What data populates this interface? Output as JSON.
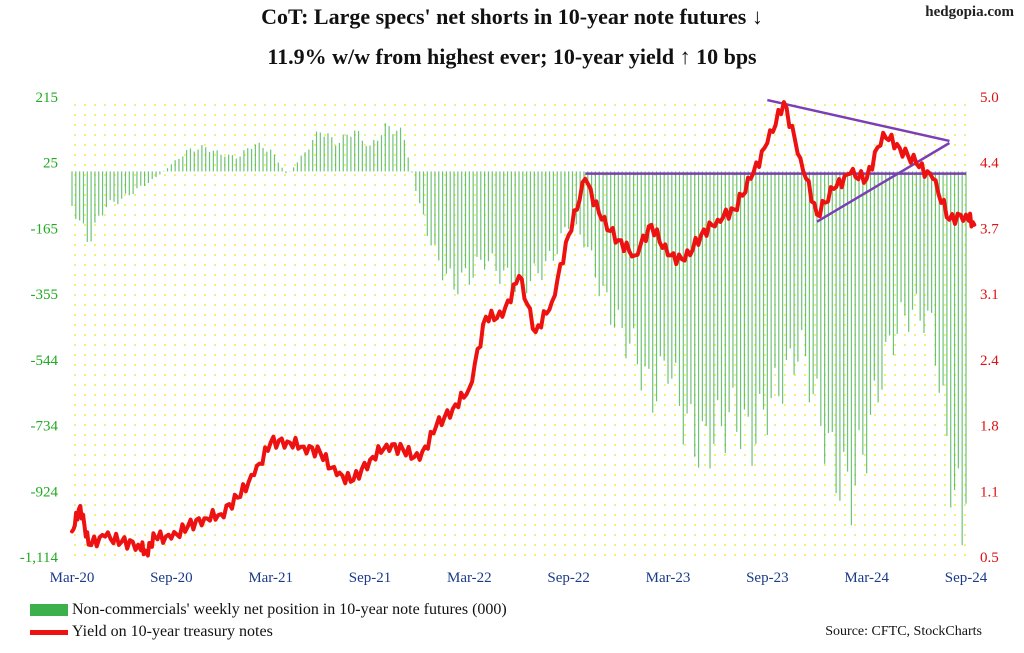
{
  "brand": "hedgopia.com",
  "title_line1": "CoT: Large specs' net shorts in 10-year note futures ↓",
  "title_line2": "11.9% w/w from highest ever; 10-year yield ↑ 10 bps",
  "legend": {
    "bars": "Non-commercials' weekly net position in 10-year note futures (000)",
    "line": "Yield on 10-year treasury notes"
  },
  "source": "Source: CFTC, StockCharts",
  "colors": {
    "bars": "#3cb04a",
    "line": "#ee1111",
    "trendlines": "#7a3fb5",
    "left_axis_text": "#22aa22",
    "right_axis_text": "#dd1111",
    "plot_dots": "#f0ec70"
  },
  "chart_data": {
    "type": "bar",
    "x_range": [
      "2020-03",
      "2024-09"
    ],
    "x_tick_labels": [
      "Mar-20",
      "Sep-20",
      "Mar-21",
      "Sep-21",
      "Mar-22",
      "Sep-22",
      "Mar-23",
      "Sep-23",
      "Mar-24",
      "Sep-24"
    ],
    "y_left": {
      "ticks": [
        "215",
        "25",
        "-165",
        "-355",
        "-544",
        "-734",
        "-924",
        "-1,114"
      ],
      "ylim": [
        -1114,
        215
      ]
    },
    "y_right": {
      "ticks": [
        "5.0",
        "4.4",
        "3.7",
        "3.1",
        "2.4",
        "1.8",
        "1.1",
        "0.5"
      ],
      "ylim": [
        0.5,
        5.0
      ]
    },
    "grid": "dotted",
    "series": [
      {
        "name": "Non-commercials' weekly net position in 10-year note futures (000)",
        "kind": "bar",
        "axis": "left",
        "anchors": [
          [
            "2020-03",
            -100
          ],
          [
            "2020-04",
            -200
          ],
          [
            "2020-05",
            -100
          ],
          [
            "2020-06",
            -80
          ],
          [
            "2020-08",
            -20
          ],
          [
            "2020-09",
            20
          ],
          [
            "2020-10",
            60
          ],
          [
            "2020-11",
            70
          ],
          [
            "2020-12",
            50
          ],
          [
            "2021-01",
            40
          ],
          [
            "2021-02",
            80
          ],
          [
            "2021-03",
            60
          ],
          [
            "2021-04",
            -10
          ],
          [
            "2021-05",
            50
          ],
          [
            "2021-06",
            120
          ],
          [
            "2021-07",
            80
          ],
          [
            "2021-08",
            120
          ],
          [
            "2021-09",
            70
          ],
          [
            "2021-10",
            130
          ],
          [
            "2021-11",
            110
          ],
          [
            "2021-12",
            -100
          ],
          [
            "2022-01",
            -250
          ],
          [
            "2022-02",
            -330
          ],
          [
            "2022-03",
            -300
          ],
          [
            "2022-04",
            -250
          ],
          [
            "2022-05",
            -300
          ],
          [
            "2022-06",
            -330
          ],
          [
            "2022-07",
            -300
          ],
          [
            "2022-08",
            -250
          ],
          [
            "2022-09",
            -150
          ],
          [
            "2022-10",
            -200
          ],
          [
            "2022-11",
            -350
          ],
          [
            "2022-12",
            -450
          ],
          [
            "2023-01",
            -520
          ],
          [
            "2023-02",
            -650
          ],
          [
            "2023-03",
            -550
          ],
          [
            "2023-04",
            -720
          ],
          [
            "2023-05",
            -800
          ],
          [
            "2023-06",
            -750
          ],
          [
            "2023-07",
            -700
          ],
          [
            "2023-08",
            -780
          ],
          [
            "2023-09",
            -680
          ],
          [
            "2023-10",
            -600
          ],
          [
            "2023-11",
            -500
          ],
          [
            "2023-12",
            -680
          ],
          [
            "2024-01",
            -850
          ],
          [
            "2024-02",
            -930
          ],
          [
            "2024-03",
            -780
          ],
          [
            "2024-04",
            -560
          ],
          [
            "2024-05",
            -430
          ],
          [
            "2024-06",
            -400
          ],
          [
            "2024-07",
            -450
          ],
          [
            "2024-08",
            -850
          ],
          [
            "2024-09",
            -1080
          ]
        ],
        "latest": -960
      },
      {
        "name": "Yield on 10-year treasury notes",
        "kind": "line",
        "axis": "right",
        "points": [
          [
            "2020-03",
            0.75
          ],
          [
            "2020-03",
            1.0
          ],
          [
            "2020-04",
            0.62
          ],
          [
            "2020-05",
            0.7
          ],
          [
            "2020-06",
            0.65
          ],
          [
            "2020-07",
            0.62
          ],
          [
            "2020-07",
            0.55
          ],
          [
            "2020-08",
            0.7
          ],
          [
            "2020-09",
            0.68
          ],
          [
            "2020-10",
            0.8
          ],
          [
            "2020-11",
            0.88
          ],
          [
            "2020-12",
            0.92
          ],
          [
            "2021-01",
            1.08
          ],
          [
            "2021-02",
            1.3
          ],
          [
            "2021-03",
            1.62
          ],
          [
            "2021-04",
            1.63
          ],
          [
            "2021-05",
            1.58
          ],
          [
            "2021-06",
            1.52
          ],
          [
            "2021-07",
            1.3
          ],
          [
            "2021-08",
            1.25
          ],
          [
            "2021-09",
            1.45
          ],
          [
            "2021-10",
            1.6
          ],
          [
            "2021-11",
            1.55
          ],
          [
            "2021-12",
            1.45
          ],
          [
            "2022-01",
            1.78
          ],
          [
            "2022-02",
            1.95
          ],
          [
            "2022-03",
            2.15
          ],
          [
            "2022-04",
            2.85
          ],
          [
            "2022-05",
            2.85
          ],
          [
            "2022-06",
            3.25
          ],
          [
            "2022-07",
            2.7
          ],
          [
            "2022-08",
            3.0
          ],
          [
            "2022-09",
            3.65
          ],
          [
            "2022-10",
            4.2
          ],
          [
            "2022-11",
            3.8
          ],
          [
            "2022-12",
            3.6
          ],
          [
            "2023-01",
            3.45
          ],
          [
            "2023-02",
            3.75
          ],
          [
            "2023-03",
            3.45
          ],
          [
            "2023-04",
            3.4
          ],
          [
            "2023-05",
            3.65
          ],
          [
            "2023-06",
            3.8
          ],
          [
            "2023-07",
            3.9
          ],
          [
            "2023-08",
            4.2
          ],
          [
            "2023-09",
            4.55
          ],
          [
            "2023-10",
            4.95
          ],
          [
            "2023-11",
            4.4
          ],
          [
            "2023-12",
            3.85
          ],
          [
            "2024-01",
            4.1
          ],
          [
            "2024-02",
            4.25
          ],
          [
            "2024-03",
            4.2
          ],
          [
            "2024-04",
            4.65
          ],
          [
            "2024-05",
            4.5
          ],
          [
            "2024-06",
            4.35
          ],
          [
            "2024-07",
            4.2
          ],
          [
            "2024-08",
            3.8
          ],
          [
            "2024-09",
            3.85
          ],
          [
            "2024-09",
            3.75
          ]
        ]
      }
    ],
    "annotations": [
      {
        "kind": "horizontal_line",
        "axis": "right",
        "y": 4.25,
        "from": "2022-10",
        "to": "2024-09"
      },
      {
        "kind": "trendline",
        "axis": "right",
        "from": [
          "2023-09",
          4.97
        ],
        "to": [
          "2024-08",
          4.57
        ]
      },
      {
        "kind": "trendline",
        "axis": "right",
        "from": [
          "2023-12",
          3.78
        ],
        "to": [
          "2024-08",
          4.55
        ]
      }
    ]
  }
}
